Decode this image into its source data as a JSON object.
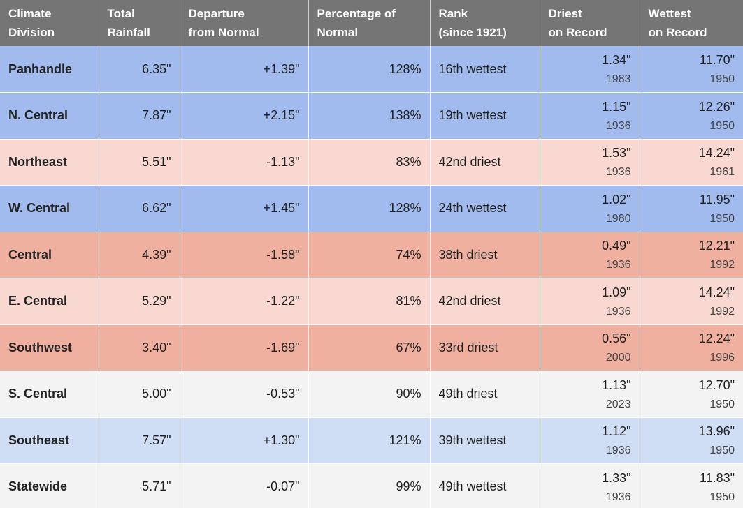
{
  "table": {
    "headers": [
      [
        "Climate",
        "Division"
      ],
      [
        "Total",
        "Rainfall"
      ],
      [
        "Departure",
        "from Normal"
      ],
      [
        "Percentage of",
        "Normal"
      ],
      [
        "Rank",
        "(since 1921)"
      ],
      [
        "Driest",
        "on Record"
      ],
      [
        "Wettest",
        "on Record"
      ]
    ],
    "rows": [
      {
        "division": "Panhandle",
        "total": "6.35\"",
        "departure": "+1.39\"",
        "percent": "128%",
        "rank": "16th wettest",
        "driest_value": "1.34\"",
        "driest_year": "1983",
        "wettest_value": "11.70\"",
        "wettest_year": "1950",
        "shade": "wet-strong"
      },
      {
        "division": "N. Central",
        "total": "7.87\"",
        "departure": "+2.15\"",
        "percent": "138%",
        "rank": "19th wettest",
        "driest_value": "1.15\"",
        "driest_year": "1936",
        "wettest_value": "12.26\"",
        "wettest_year": "1950",
        "shade": "wet-strong"
      },
      {
        "division": "Northeast",
        "total": "5.51\"",
        "departure": "-1.13\"",
        "percent": "83%",
        "rank": "42nd driest",
        "driest_value": "1.53\"",
        "driest_year": "1936",
        "wettest_value": "14.24\"",
        "wettest_year": "1961",
        "shade": "dry-light"
      },
      {
        "division": "W. Central",
        "total": "6.62\"",
        "departure": "+1.45\"",
        "percent": "128%",
        "rank": "24th wettest",
        "driest_value": "1.02\"",
        "driest_year": "1980",
        "wettest_value": "11.95\"",
        "wettest_year": "1950",
        "shade": "wet-strong"
      },
      {
        "division": "Central",
        "total": "4.39\"",
        "departure": "-1.58\"",
        "percent": "74%",
        "rank": "38th driest",
        "driest_value": "0.49\"",
        "driest_year": "1936",
        "wettest_value": "12.21\"",
        "wettest_year": "1992",
        "shade": "dry-strong"
      },
      {
        "division": "E. Central",
        "total": "5.29\"",
        "departure": "-1.22\"",
        "percent": "81%",
        "rank": "42nd driest",
        "driest_value": "1.09\"",
        "driest_year": "1936",
        "wettest_value": "14.24\"",
        "wettest_year": "1992",
        "shade": "dry-light"
      },
      {
        "division": "Southwest",
        "total": "3.40\"",
        "departure": "-1.69\"",
        "percent": "67%",
        "rank": "33rd driest",
        "driest_value": "0.56\"",
        "driest_year": "2000",
        "wettest_value": "12.24\"",
        "wettest_year": "1996",
        "shade": "dry-strong"
      },
      {
        "division": "S. Central",
        "total": "5.00\"",
        "departure": "-0.53\"",
        "percent": "90%",
        "rank": "49th driest",
        "driest_value": "1.13\"",
        "driest_year": "2023",
        "wettest_value": "12.70\"",
        "wettest_year": "1950",
        "shade": "neutral"
      },
      {
        "division": "Southeast",
        "total": "7.57\"",
        "departure": "+1.30\"",
        "percent": "121%",
        "rank": "39th wettest",
        "driest_value": "1.12\"",
        "driest_year": "1936",
        "wettest_value": "13.96\"",
        "wettest_year": "1950",
        "shade": "wet-light"
      },
      {
        "division": "Statewide",
        "total": "5.71\"",
        "departure": "-0.07\"",
        "percent": "99%",
        "rank": "49th wettest",
        "driest_value": "1.33\"",
        "driest_year": "1936",
        "wettest_value": "11.83\"",
        "wettest_year": "1950",
        "shade": "neutral"
      }
    ]
  },
  "colors": {
    "header_bg": "#757575",
    "wet_strong": "#a1bbee",
    "wet_light": "#cfddf5",
    "dry_light": "#f8d8d0",
    "dry_strong": "#f0b0a0",
    "neutral": "#f3f3f3"
  }
}
